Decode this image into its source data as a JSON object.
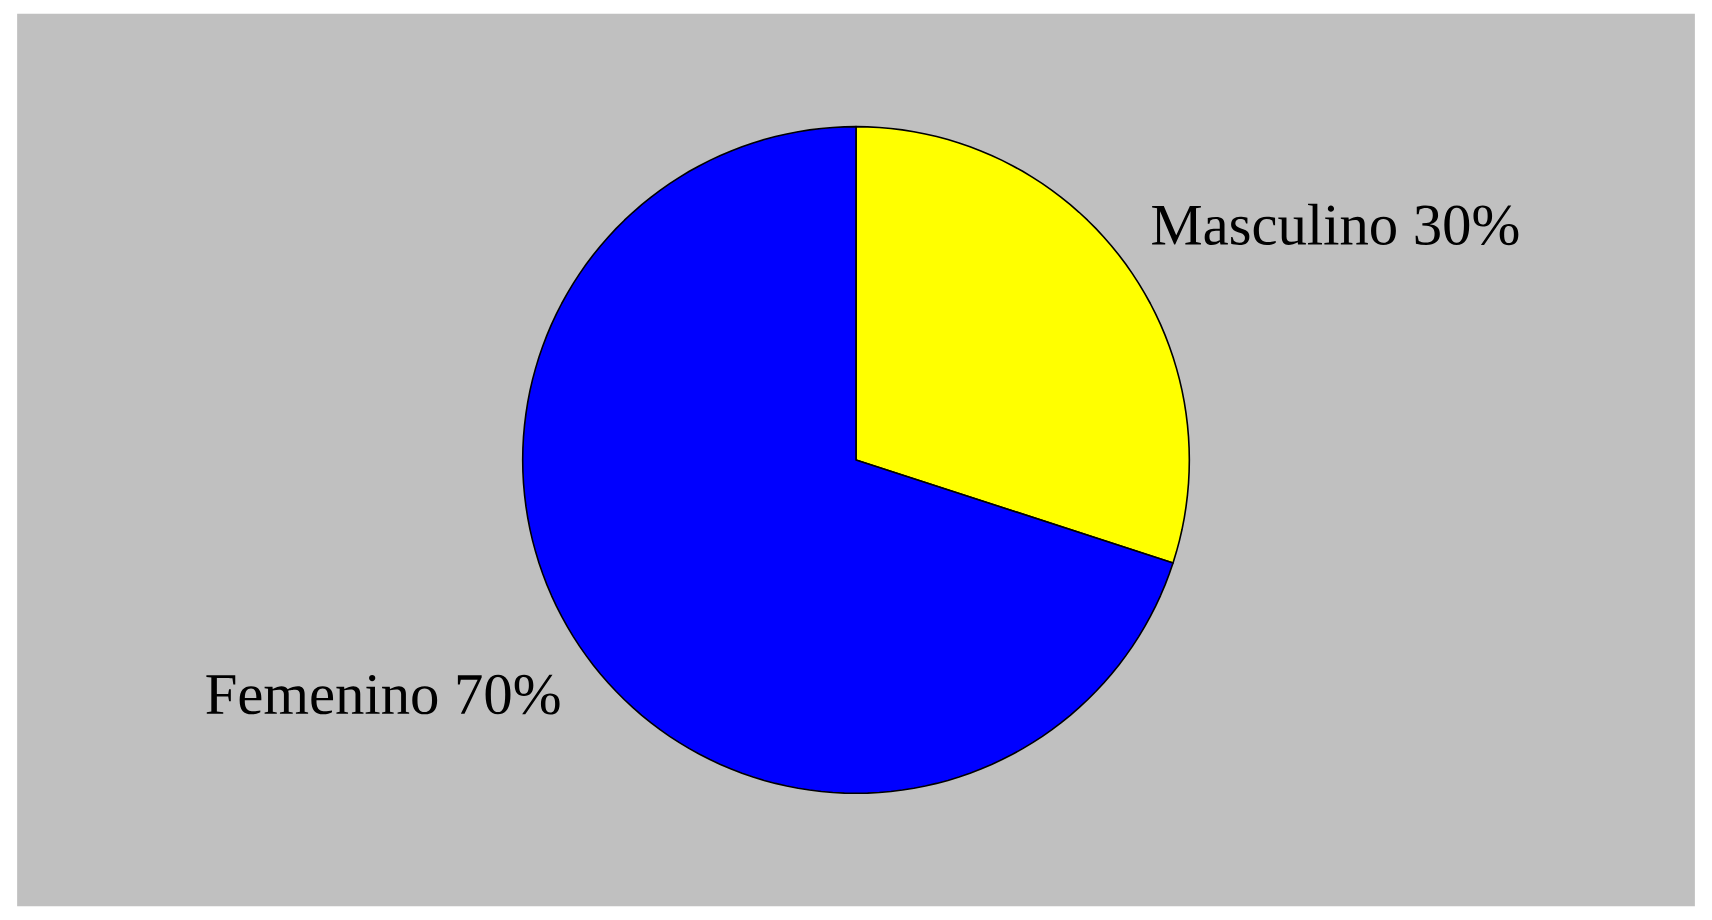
{
  "chart_data": {
    "type": "pie",
    "categories": [
      "Masculino",
      "Femenino"
    ],
    "values": [
      30,
      70
    ],
    "value_labels": [
      "30%",
      "70%"
    ],
    "colors": [
      "#ffff00",
      "#0000ff"
    ]
  }
}
